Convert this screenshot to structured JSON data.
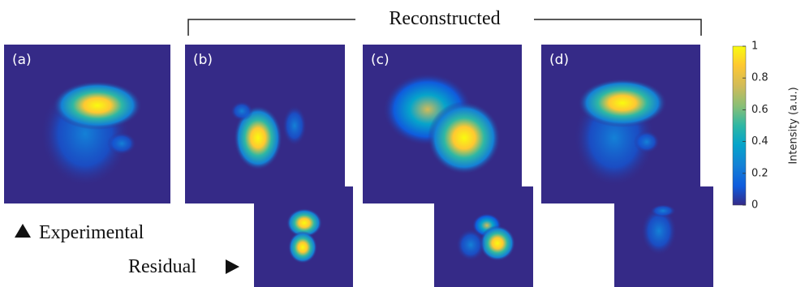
{
  "header": {
    "title": "Reconstructed"
  },
  "panels": [
    {
      "label": "(a)"
    },
    {
      "label": "(b)"
    },
    {
      "label": "(c)"
    },
    {
      "label": "(d)"
    }
  ],
  "captions": {
    "experimental": "Experimental",
    "residual": "Residual"
  },
  "colorbar": {
    "label": "Intensity (a.u.)",
    "lim": [
      0,
      1
    ],
    "ticks": [
      0,
      0.2,
      0.4,
      0.6,
      0.8,
      1
    ]
  }
}
